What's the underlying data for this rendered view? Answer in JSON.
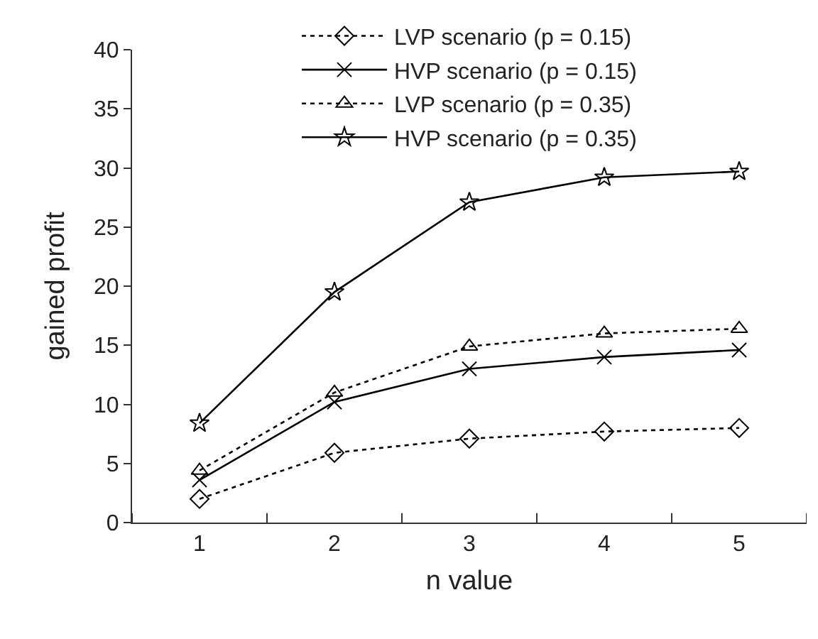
{
  "chart_data": {
    "type": "line",
    "xlabel": "n value",
    "ylabel": "gained profit",
    "categories": [
      "1",
      "2",
      "3",
      "4",
      "5"
    ],
    "series": [
      {
        "name": "LVP scenario (p = 0.15)",
        "color": "#000000",
        "marker": "diamond",
        "line_style": "dotted",
        "values": [
          2.0,
          5.9,
          7.1,
          7.7,
          8.0
        ]
      },
      {
        "name": "HVP scenario (p = 0.15)",
        "color": "#000000",
        "marker": "cross",
        "line_style": "solid",
        "values": [
          3.6,
          10.2,
          13.0,
          14.0,
          14.6
        ]
      },
      {
        "name": "LVP scenario (p = 0.35)",
        "color": "#000000",
        "marker": "triangle",
        "line_style": "dotted",
        "values": [
          4.4,
          11.0,
          14.9,
          16.0,
          16.4
        ]
      },
      {
        "name": "HVP scenario (p = 0.35)",
        "color": "#000000",
        "marker": "star",
        "line_style": "solid",
        "values": [
          8.4,
          19.5,
          27.1,
          29.2,
          29.7
        ]
      }
    ],
    "ylim": [
      0,
      40
    ],
    "yticks": [
      0,
      5,
      10,
      15,
      20,
      25,
      30,
      35,
      40
    ],
    "legend": "top"
  }
}
